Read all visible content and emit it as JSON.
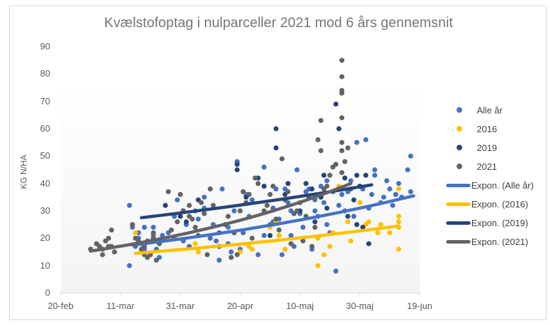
{
  "chart_data": {
    "type": "scatter",
    "title": "Kvælstofoptag i nulparceller 2021 mod 6 års gennemsnit",
    "xlabel": "",
    "ylabel": "KG N/HA",
    "ylim": [
      0,
      90
    ],
    "yticks": [
      "0",
      "10",
      "20",
      "30",
      "40",
      "50",
      "60",
      "70",
      "80",
      "90"
    ],
    "xticks": [
      "20-feb",
      "11-mar",
      "31-mar",
      "20-apr",
      "10-maj",
      "30-maj",
      "19-jun"
    ],
    "x_unit": "days since 20-feb",
    "xlim": [
      0,
      120
    ],
    "grid": false,
    "legend_position": "right",
    "colors": {
      "alle_aar": "#4472c4",
      "y2016": "#ffc000",
      "y2019": "#264478",
      "y2021": "#636363"
    },
    "series": [
      {
        "name": "Alle år",
        "kind": "points",
        "color": "#4472c4",
        "points": [
          [
            23,
            10
          ],
          [
            23,
            32
          ],
          [
            24,
            24
          ],
          [
            25,
            17
          ],
          [
            26,
            20
          ],
          [
            26,
            22
          ],
          [
            27,
            18
          ],
          [
            28,
            24
          ],
          [
            28,
            16
          ],
          [
            29,
            19
          ],
          [
            30,
            14
          ],
          [
            31,
            21
          ],
          [
            31,
            24
          ],
          [
            32,
            16
          ],
          [
            33,
            13
          ],
          [
            34,
            21
          ],
          [
            36,
            22
          ],
          [
            38,
            28
          ],
          [
            39,
            34
          ],
          [
            41,
            19
          ],
          [
            42,
            25
          ],
          [
            43,
            17
          ],
          [
            45,
            30
          ],
          [
            46,
            27
          ],
          [
            48,
            31
          ],
          [
            48,
            35
          ],
          [
            50,
            20
          ],
          [
            51,
            25
          ],
          [
            52,
            19
          ],
          [
            53,
            12
          ],
          [
            54,
            38
          ],
          [
            56,
            24
          ],
          [
            56,
            18
          ],
          [
            57,
            15
          ],
          [
            58,
            30
          ],
          [
            59,
            48
          ],
          [
            60,
            16
          ],
          [
            61,
            22
          ],
          [
            62,
            36
          ],
          [
            63,
            28
          ],
          [
            64,
            34
          ],
          [
            66,
            14
          ],
          [
            68,
            46
          ],
          [
            68,
            21
          ],
          [
            70,
            25
          ],
          [
            71,
            31
          ],
          [
            71,
            26
          ],
          [
            72,
            38
          ],
          [
            73,
            27
          ],
          [
            74,
            14
          ],
          [
            75,
            38
          ],
          [
            76,
            33
          ],
          [
            77,
            21
          ],
          [
            77,
            30
          ],
          [
            78,
            17
          ],
          [
            79,
            45
          ],
          [
            80,
            29
          ],
          [
            81,
            24
          ],
          [
            82,
            37
          ],
          [
            83,
            38
          ],
          [
            84,
            16
          ],
          [
            85,
            30
          ],
          [
            85,
            34
          ],
          [
            86,
            28
          ],
          [
            87,
            39
          ],
          [
            88,
            33
          ],
          [
            89,
            25
          ],
          [
            89,
            41
          ],
          [
            90,
            22
          ],
          [
            91,
            37
          ],
          [
            92,
            8
          ],
          [
            93,
            32
          ],
          [
            94,
            36
          ],
          [
            95,
            30
          ],
          [
            96,
            37
          ],
          [
            97,
            41
          ],
          [
            98,
            28
          ],
          [
            99,
            55
          ],
          [
            100,
            39
          ],
          [
            101,
            38
          ],
          [
            102,
            56
          ],
          [
            103,
            31
          ],
          [
            104,
            36
          ],
          [
            105,
            43
          ],
          [
            105,
            45
          ],
          [
            107,
            33
          ],
          [
            108,
            35
          ],
          [
            109,
            41
          ],
          [
            110,
            38
          ],
          [
            111,
            32
          ],
          [
            112,
            36
          ],
          [
            113,
            40
          ],
          [
            114,
            35
          ],
          [
            116,
            45
          ],
          [
            117,
            37
          ],
          [
            117,
            50
          ]
        ]
      },
      {
        "name": "2016",
        "kind": "points",
        "color": "#ffc000",
        "points": [
          [
            25,
            22
          ],
          [
            27,
            15
          ],
          [
            28,
            14
          ],
          [
            45,
            18
          ],
          [
            46,
            15
          ],
          [
            60,
            15
          ],
          [
            63,
            17
          ],
          [
            64,
            16
          ],
          [
            70,
            24
          ],
          [
            72,
            26
          ],
          [
            73,
            21
          ],
          [
            75,
            16
          ],
          [
            77,
            18
          ],
          [
            82,
            28
          ],
          [
            86,
            10
          ],
          [
            86,
            20
          ],
          [
            88,
            14
          ],
          [
            90,
            17
          ],
          [
            91,
            22
          ],
          [
            93,
            39
          ],
          [
            96,
            26
          ],
          [
            97,
            19
          ],
          [
            100,
            33
          ],
          [
            102,
            25
          ],
          [
            103,
            26
          ],
          [
            106,
            22
          ],
          [
            107,
            25
          ],
          [
            110,
            22
          ],
          [
            113,
            28
          ],
          [
            113,
            26
          ],
          [
            113,
            24
          ],
          [
            113,
            38
          ],
          [
            113,
            16
          ]
        ]
      },
      {
        "name": "2019",
        "kind": "points",
        "color": "#264478",
        "points": [
          [
            35,
            32
          ],
          [
            40,
            28
          ],
          [
            41,
            30
          ],
          [
            42,
            26
          ],
          [
            46,
            34
          ],
          [
            59,
            47
          ],
          [
            59,
            45
          ],
          [
            62,
            35
          ],
          [
            66,
            42
          ],
          [
            68,
            39
          ],
          [
            70,
            21
          ],
          [
            72,
            53
          ],
          [
            72,
            60
          ],
          [
            75,
            36
          ],
          [
            76,
            40
          ],
          [
            80,
            30
          ],
          [
            82,
            40
          ],
          [
            84,
            38
          ],
          [
            85,
            26
          ],
          [
            87,
            35
          ],
          [
            88,
            43
          ],
          [
            89,
            31
          ],
          [
            92,
            69
          ],
          [
            93,
            60
          ],
          [
            95,
            42
          ],
          [
            96,
            28
          ],
          [
            98,
            34
          ],
          [
            99,
            25
          ],
          [
            99,
            43
          ],
          [
            100,
            39
          ],
          [
            101,
            24
          ],
          [
            102,
            43
          ],
          [
            103,
            18
          ]
        ]
      },
      {
        "name": "2021",
        "kind": "points",
        "color": "#636363",
        "points": [
          [
            10,
            16
          ],
          [
            12,
            18
          ],
          [
            13,
            17
          ],
          [
            14,
            14
          ],
          [
            14,
            16
          ],
          [
            15,
            19
          ],
          [
            16,
            17
          ],
          [
            16,
            20
          ],
          [
            17,
            23
          ],
          [
            17,
            17
          ],
          [
            18,
            15
          ],
          [
            24,
            25
          ],
          [
            25,
            20
          ],
          [
            26,
            19
          ],
          [
            27,
            16
          ],
          [
            28,
            14
          ],
          [
            28,
            17
          ],
          [
            29,
            13
          ],
          [
            30,
            14
          ],
          [
            31,
            22
          ],
          [
            31,
            20
          ],
          [
            32,
            12
          ],
          [
            33,
            18
          ],
          [
            36,
            37
          ],
          [
            37,
            23
          ],
          [
            38,
            20
          ],
          [
            39,
            26
          ],
          [
            40,
            36
          ],
          [
            41,
            30
          ],
          [
            43,
            32
          ],
          [
            43,
            28
          ],
          [
            44,
            27
          ],
          [
            45,
            24
          ],
          [
            46,
            21
          ],
          [
            47,
            33
          ],
          [
            48,
            29
          ],
          [
            49,
            14
          ],
          [
            50,
            38
          ],
          [
            51,
            32
          ],
          [
            53,
            22
          ],
          [
            53,
            17
          ],
          [
            55,
            25
          ],
          [
            56,
            28
          ],
          [
            57,
            13
          ],
          [
            58,
            22
          ],
          [
            59,
            14
          ],
          [
            60,
            30
          ],
          [
            61,
            37
          ],
          [
            62,
            33
          ],
          [
            63,
            36
          ],
          [
            64,
            20
          ],
          [
            65,
            42
          ],
          [
            66,
            40
          ],
          [
            68,
            30
          ],
          [
            69,
            32
          ],
          [
            70,
            36
          ],
          [
            71,
            39
          ],
          [
            72,
            27
          ],
          [
            73,
            23
          ],
          [
            74,
            49
          ],
          [
            75,
            34
          ],
          [
            76,
            37
          ],
          [
            77,
            18
          ],
          [
            78,
            29
          ],
          [
            79,
            30
          ],
          [
            80,
            33
          ],
          [
            81,
            19
          ],
          [
            82,
            28
          ],
          [
            83,
            35
          ],
          [
            84,
            17
          ],
          [
            85,
            24
          ],
          [
            86,
            56
          ],
          [
            87,
            63
          ],
          [
            87,
            52
          ],
          [
            88,
            38
          ],
          [
            89,
            39
          ],
          [
            90,
            43
          ],
          [
            91,
            46
          ],
          [
            92,
            47
          ],
          [
            93,
            38
          ],
          [
            94,
            85
          ],
          [
            94,
            79
          ],
          [
            94,
            74
          ],
          [
            94,
            73
          ],
          [
            94,
            64
          ],
          [
            94,
            55
          ],
          [
            94,
            52
          ],
          [
            94,
            44
          ],
          [
            95,
            48
          ],
          [
            96,
            53
          ],
          [
            97,
            38
          ]
        ]
      },
      {
        "name": "Expon. (Alle år)",
        "kind": "trendline",
        "color": "#4472c4",
        "points": [
          [
            24,
            17.5
          ],
          [
            118,
            35.5
          ]
        ]
      },
      {
        "name": "Expon. (2016)",
        "kind": "trendline",
        "color": "#ffc000",
        "points": [
          [
            25,
            14.5
          ],
          [
            113,
            24.5
          ]
        ]
      },
      {
        "name": "Expon. (2019)",
        "kind": "trendline",
        "color": "#264478",
        "points": [
          [
            27,
            27.5
          ],
          [
            104,
            39.5
          ]
        ]
      },
      {
        "name": "Expon. (2021)",
        "kind": "trendline",
        "color": "#636363",
        "points": [
          [
            10,
            15.3
          ],
          [
            97,
            40
          ]
        ]
      }
    ]
  },
  "legend": {
    "items": [
      {
        "label": "Alle år",
        "type": "dot",
        "color": "#4472c4"
      },
      {
        "label": "2016",
        "type": "dot",
        "color": "#ffc000"
      },
      {
        "label": "2019",
        "type": "dot",
        "color": "#264478"
      },
      {
        "label": "2021",
        "type": "dot",
        "color": "#636363"
      },
      {
        "label": "Expon. (Alle år)",
        "type": "line",
        "color": "#4472c4"
      },
      {
        "label": "Expon. (2016)",
        "type": "line",
        "color": "#ffc000"
      },
      {
        "label": "Expon. (2019)",
        "type": "line",
        "color": "#264478"
      },
      {
        "label": "Expon. (2021)",
        "type": "line",
        "color": "#636363"
      }
    ]
  }
}
